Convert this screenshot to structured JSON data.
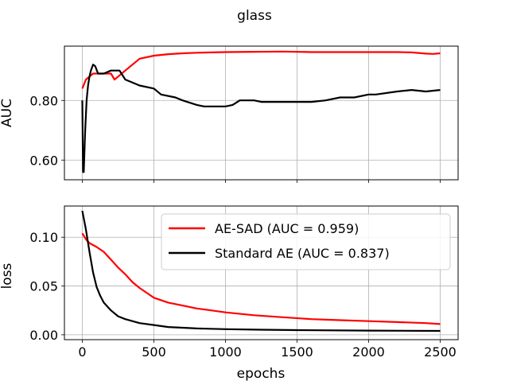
{
  "chart_data": [
    {
      "type": "line",
      "title": "glass",
      "ylabel": "AUC",
      "xlabel": "",
      "xlim": [
        -125,
        2625
      ],
      "ylim": [
        0.534,
        0.982
      ],
      "yticks": [
        0.6,
        0.8
      ],
      "ytick_labels": [
        "0.60",
        "0.80"
      ],
      "xticks": [
        0,
        500,
        1000,
        1500,
        2000,
        2500
      ],
      "grid": true,
      "series": [
        {
          "name": "AE-SAD (AUC = 0.959)",
          "color": "#ff0000",
          "x": [
            0,
            25,
            50,
            75,
            100,
            150,
            200,
            225,
            250,
            300,
            400,
            500,
            600,
            700,
            800,
            1000,
            1200,
            1400,
            1500,
            1600,
            1800,
            2000,
            2200,
            2300,
            2400,
            2450,
            2500
          ],
          "y": [
            0.84,
            0.87,
            0.88,
            0.89,
            0.89,
            0.89,
            0.89,
            0.87,
            0.88,
            0.9,
            0.94,
            0.95,
            0.955,
            0.958,
            0.96,
            0.962,
            0.963,
            0.964,
            0.963,
            0.962,
            0.962,
            0.962,
            0.962,
            0.961,
            0.957,
            0.956,
            0.958
          ]
        },
        {
          "name": "Standard AE (AUC = 0.837)",
          "color": "#000000",
          "x": [
            0,
            5,
            10,
            20,
            30,
            40,
            50,
            60,
            75,
            90,
            110,
            150,
            200,
            260,
            300,
            400,
            500,
            550,
            650,
            700,
            800,
            850,
            1000,
            1050,
            1100,
            1200,
            1250,
            1500,
            1600,
            1700,
            1800,
            1900,
            2000,
            2050,
            2200,
            2300,
            2400,
            2500
          ],
          "y": [
            0.8,
            0.56,
            0.56,
            0.7,
            0.8,
            0.85,
            0.88,
            0.9,
            0.92,
            0.915,
            0.89,
            0.89,
            0.9,
            0.9,
            0.87,
            0.85,
            0.84,
            0.82,
            0.81,
            0.8,
            0.785,
            0.78,
            0.78,
            0.785,
            0.8,
            0.8,
            0.795,
            0.795,
            0.795,
            0.8,
            0.81,
            0.81,
            0.82,
            0.82,
            0.83,
            0.835,
            0.83,
            0.835
          ]
        }
      ]
    },
    {
      "type": "line",
      "title": "",
      "xlabel": "epochs",
      "ylabel": "loss",
      "xlim": [
        -125,
        2625
      ],
      "ylim": [
        -0.005,
        0.132
      ],
      "yticks": [
        0.0,
        0.05,
        0.1
      ],
      "ytick_labels": [
        "0.00",
        "0.05",
        "0.10"
      ],
      "xticks": [
        0,
        500,
        1000,
        1500,
        2000,
        2500
      ],
      "xtick_labels": [
        "0",
        "500",
        "1000",
        "1500",
        "2000",
        "2500"
      ],
      "grid": true,
      "legend_position": "top-right",
      "series": [
        {
          "name": "AE-SAD (AUC = 0.959)",
          "color": "#ff0000",
          "x": [
            0,
            25,
            50,
            100,
            150,
            200,
            250,
            300,
            350,
            400,
            450,
            500,
            600,
            700,
            800,
            900,
            1000,
            1200,
            1400,
            1600,
            1800,
            2000,
            2200,
            2400,
            2500
          ],
          "y": [
            0.104,
            0.098,
            0.094,
            0.09,
            0.085,
            0.077,
            0.069,
            0.062,
            0.054,
            0.048,
            0.043,
            0.038,
            0.033,
            0.03,
            0.027,
            0.025,
            0.023,
            0.02,
            0.018,
            0.016,
            0.015,
            0.014,
            0.013,
            0.012,
            0.011
          ]
        },
        {
          "name": "Standard AE (AUC = 0.837)",
          "color": "#000000",
          "x": [
            0,
            25,
            50,
            75,
            100,
            125,
            150,
            200,
            250,
            300,
            400,
            500,
            600,
            800,
            1000,
            1250,
            1500,
            2000,
            2500
          ],
          "y": [
            0.127,
            0.108,
            0.085,
            0.064,
            0.049,
            0.04,
            0.033,
            0.025,
            0.019,
            0.016,
            0.012,
            0.01,
            0.008,
            0.0065,
            0.0058,
            0.0052,
            0.0048,
            0.0043,
            0.004
          ]
        }
      ]
    }
  ]
}
